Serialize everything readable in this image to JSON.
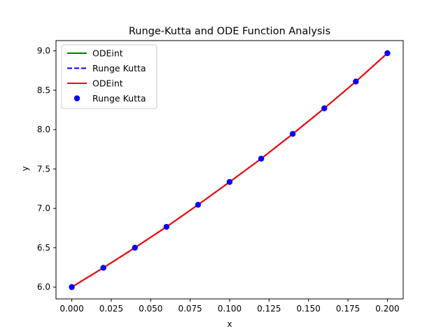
{
  "chart_data": {
    "type": "line",
    "title": "Runge-Kutta and ODE Function Analysis",
    "xlabel": "x",
    "ylabel": "y",
    "xlim": [
      -0.01,
      0.21
    ],
    "ylim": [
      5.85,
      9.13
    ],
    "xticks": [
      0.0,
      0.025,
      0.05,
      0.075,
      0.1,
      0.125,
      0.15,
      0.175,
      0.2
    ],
    "xtick_labels": [
      "0.000",
      "0.025",
      "0.050",
      "0.075",
      "0.100",
      "0.125",
      "0.150",
      "0.175",
      "0.200"
    ],
    "yticks": [
      6.0,
      6.5,
      7.0,
      7.5,
      8.0,
      8.5,
      9.0
    ],
    "ytick_labels": [
      "6.0",
      "6.5",
      "7.0",
      "7.5",
      "8.0",
      "8.5",
      "9.0"
    ],
    "grid": false,
    "legend_position": "upper-left",
    "x": [
      0.0,
      0.02,
      0.04,
      0.06,
      0.08,
      0.1,
      0.12,
      0.14,
      0.16,
      0.18,
      0.2
    ],
    "series": [
      {
        "name": "ODEint",
        "style": "solid",
        "marker": "none",
        "color": "#008000",
        "values": [
          6.0,
          6.245,
          6.5,
          6.765,
          7.045,
          7.335,
          7.63,
          7.945,
          8.27,
          8.61,
          8.97
        ]
      },
      {
        "name": "Runge Kutta",
        "style": "dashed",
        "marker": "none",
        "color": "#0000ff",
        "values": [
          6.0,
          6.245,
          6.5,
          6.765,
          7.045,
          7.335,
          7.63,
          7.945,
          8.27,
          8.61,
          8.97
        ]
      },
      {
        "name": "ODEint",
        "style": "solid",
        "marker": "none",
        "color": "#ff0000",
        "values": [
          6.0,
          6.245,
          6.5,
          6.765,
          7.045,
          7.335,
          7.63,
          7.945,
          8.27,
          8.61,
          8.97
        ]
      },
      {
        "name": "Runge Kutta",
        "style": "none",
        "marker": "circle",
        "color": "#0000ff",
        "values": [
          6.0,
          6.245,
          6.5,
          6.765,
          7.045,
          7.335,
          7.63,
          7.945,
          8.27,
          8.61,
          8.97
        ]
      }
    ]
  }
}
